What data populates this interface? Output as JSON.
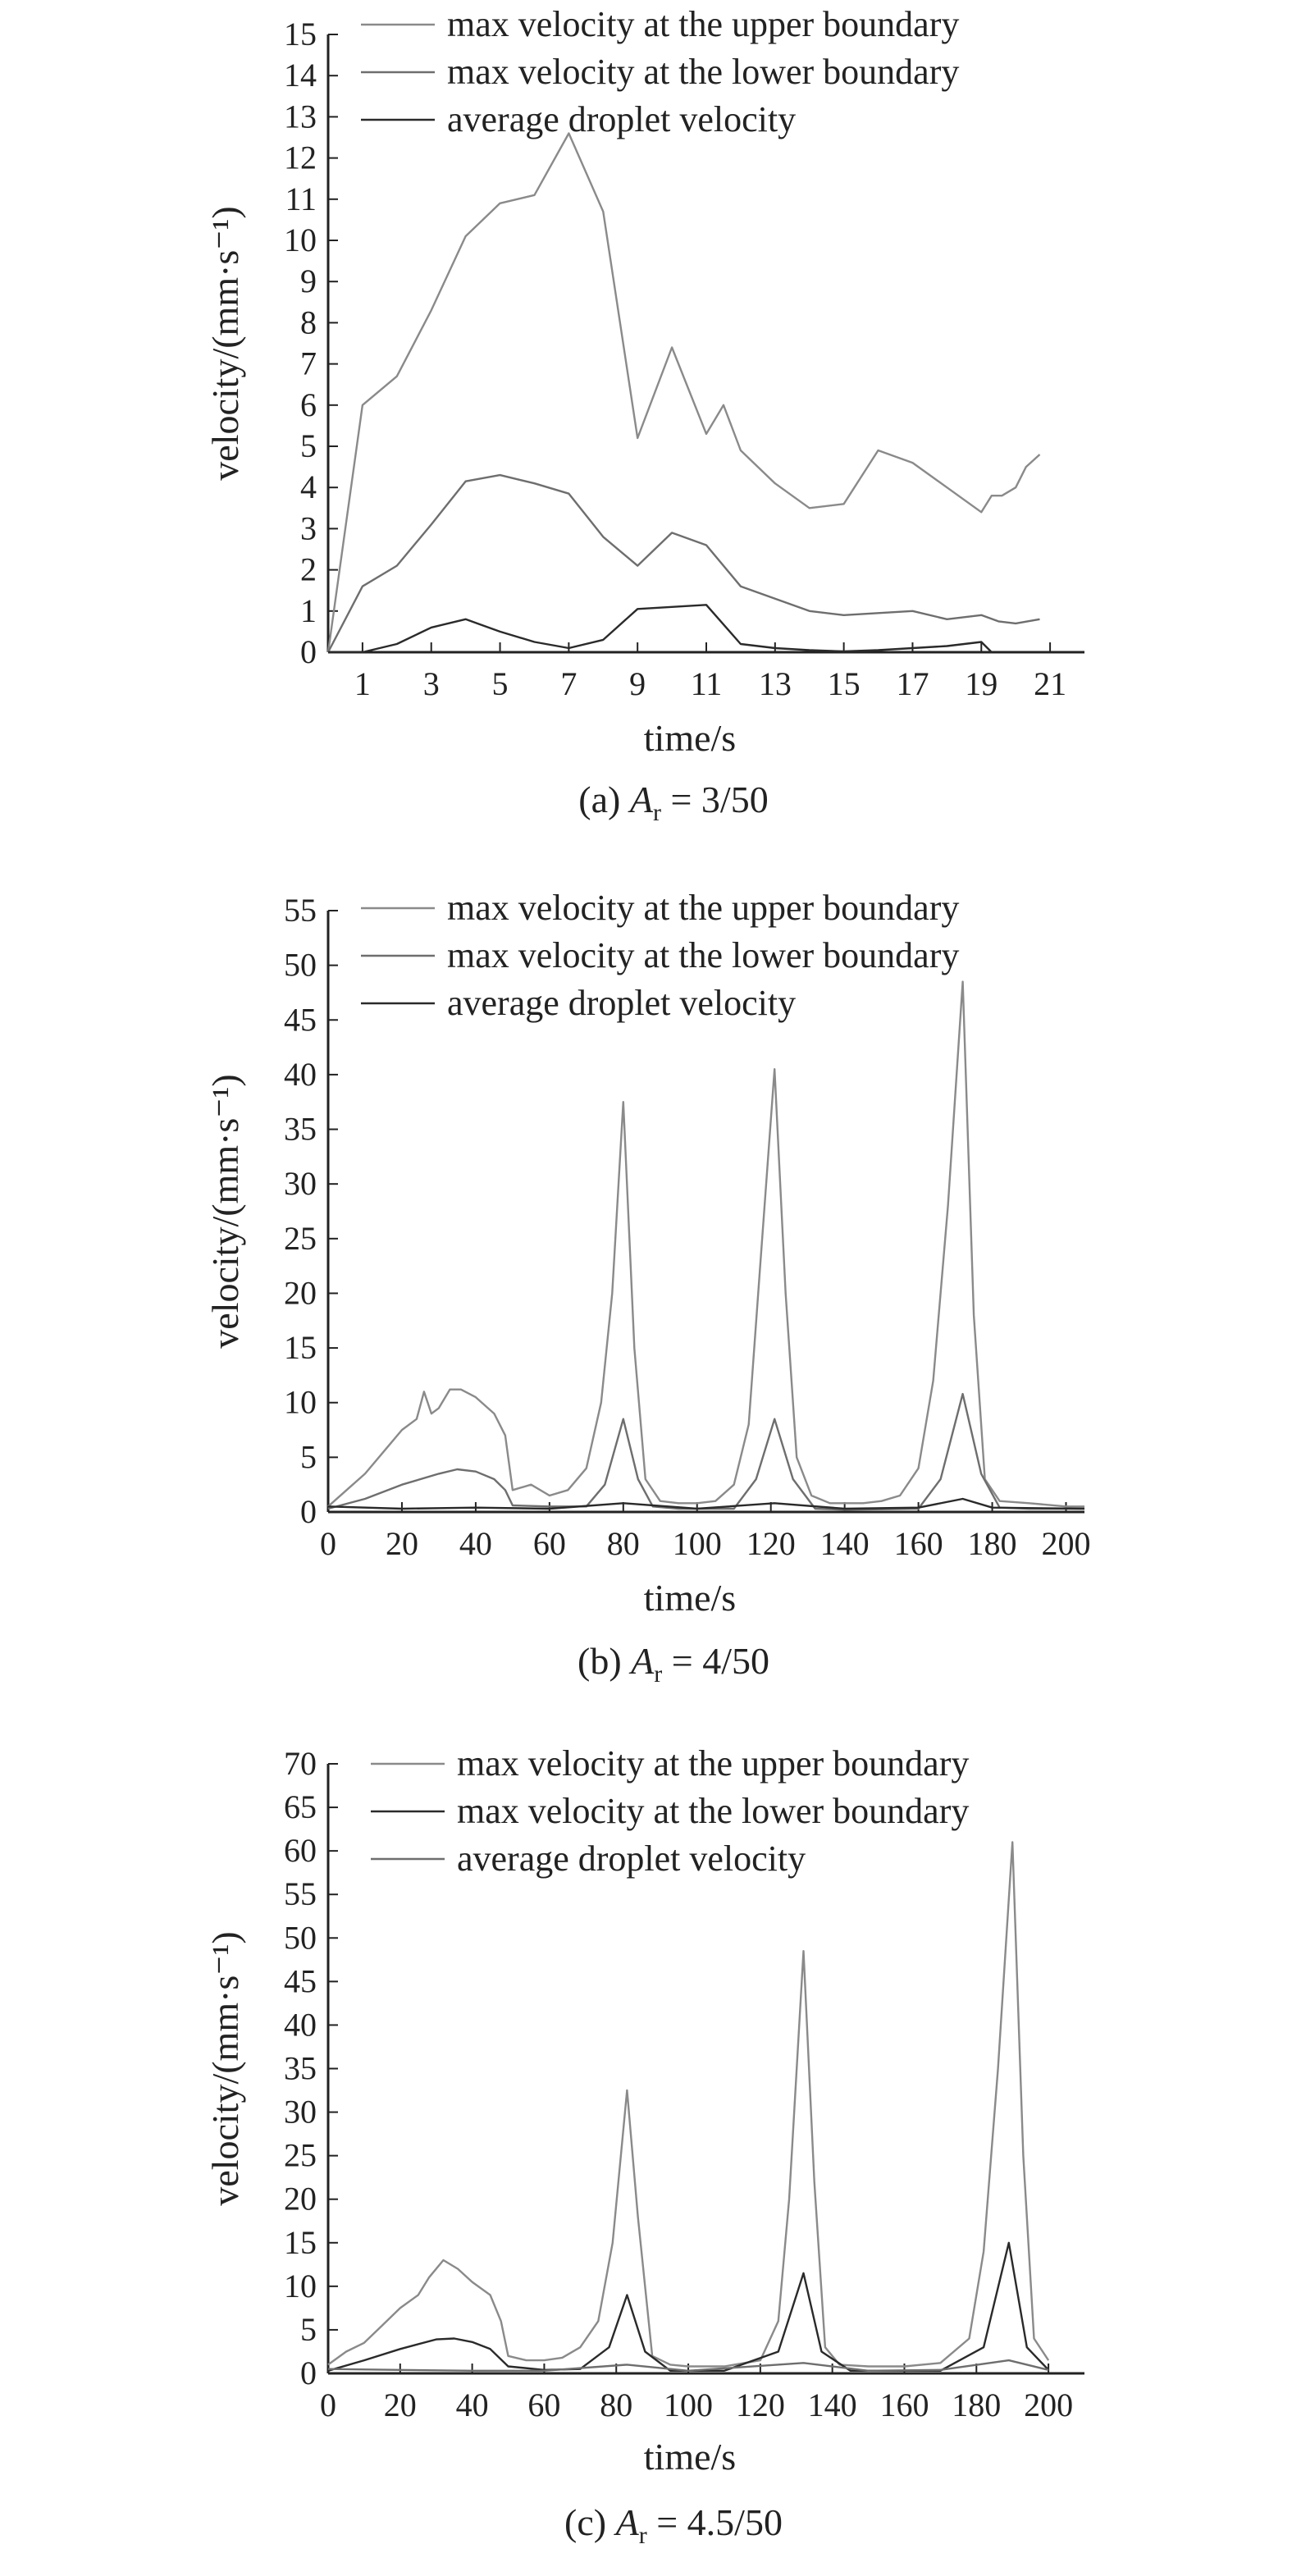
{
  "chart_data": [
    {
      "type": "line",
      "caption": "(a) A_r = 3/50",
      "caption_parts": {
        "prefix": "(a) ",
        "symbol": "A",
        "subscript": "r",
        "suffix": " = 3/50"
      },
      "xlabel": "time/s",
      "ylabel": "velocity/(mm·s⁻¹)",
      "xlim": [
        0,
        22
      ],
      "ylim": [
        0,
        15
      ],
      "xticks": [
        1,
        3,
        5,
        7,
        9,
        11,
        13,
        15,
        17,
        19,
        21
      ],
      "yticks": [
        0,
        1,
        2,
        3,
        4,
        5,
        6,
        7,
        8,
        9,
        10,
        11,
        12,
        13,
        14,
        15
      ],
      "legend_position": "top",
      "grid": false,
      "series": [
        {
          "name": "max velocity at the upper boundary",
          "color": "#8a8a8a",
          "x": [
            0,
            1,
            2,
            3,
            4,
            5,
            6,
            7,
            8,
            9,
            10,
            11,
            11.5,
            12,
            13,
            14,
            15,
            16,
            17,
            18,
            19,
            19.3,
            19.6,
            20,
            20.3,
            20.7
          ],
          "y": [
            0,
            6,
            6.7,
            8.3,
            10.1,
            10.9,
            11.1,
            12.6,
            10.7,
            5.2,
            7.4,
            5.3,
            6.0,
            4.9,
            4.1,
            3.5,
            3.6,
            4.9,
            4.6,
            4.0,
            3.4,
            3.8,
            3.8,
            4.0,
            4.5,
            4.8
          ]
        },
        {
          "name": "max velocity at the lower boundary",
          "color": "#6e6e6e",
          "x": [
            0,
            1,
            2,
            3,
            4,
            5,
            6,
            7,
            8,
            9,
            10,
            11,
            12,
            13,
            14,
            15,
            16,
            17,
            18,
            19,
            19.5,
            20,
            20.7
          ],
          "y": [
            0,
            1.6,
            2.1,
            3.1,
            4.15,
            4.3,
            4.1,
            3.85,
            2.8,
            2.1,
            2.9,
            2.6,
            1.6,
            1.3,
            1.0,
            0.9,
            0.95,
            1.0,
            0.8,
            0.9,
            0.75,
            0.7,
            0.8
          ]
        },
        {
          "name": "average droplet velocity",
          "color": "#2a2a2a",
          "x": [
            0,
            1,
            2,
            3,
            4,
            5,
            6,
            7,
            8,
            9,
            10,
            11,
            12,
            13,
            14,
            15,
            16,
            17,
            18,
            19,
            19.3
          ],
          "y": [
            0,
            0,
            0.2,
            0.6,
            0.8,
            0.5,
            0.25,
            0.1,
            0.3,
            1.05,
            1.1,
            1.15,
            0.2,
            0.1,
            0.05,
            0.02,
            0.05,
            0.1,
            0.15,
            0.25,
            0.0
          ]
        }
      ]
    },
    {
      "type": "line",
      "caption": "(b) A_r = 4/50",
      "caption_parts": {
        "prefix": "(b) ",
        "symbol": "A",
        "subscript": "r",
        "suffix": " = 4/50"
      },
      "xlabel": "time/s",
      "ylabel": "velocity/(mm·s⁻¹)",
      "xlim": [
        0,
        205
      ],
      "ylim": [
        0,
        55
      ],
      "xticks": [
        0,
        20,
        40,
        60,
        80,
        100,
        120,
        140,
        160,
        180,
        200
      ],
      "yticks": [
        0,
        5,
        10,
        15,
        20,
        25,
        30,
        35,
        40,
        45,
        50,
        55
      ],
      "legend_position": "top",
      "grid": false,
      "series": [
        {
          "name": "max velocity at the upper boundary",
          "color": "#8a8a8a",
          "x": [
            0,
            5,
            10,
            15,
            20,
            24,
            26,
            28,
            30,
            33,
            36,
            40,
            45,
            48,
            50,
            55,
            60,
            65,
            70,
            74,
            77,
            80,
            83,
            86,
            90,
            95,
            100,
            105,
            110,
            114,
            117,
            121,
            124,
            127,
            131,
            136,
            140,
            145,
            150,
            155,
            160,
            164,
            168,
            172,
            175,
            178,
            182,
            190,
            200,
            205
          ],
          "y": [
            0.5,
            2,
            3.5,
            5.5,
            7.5,
            8.5,
            11,
            9,
            9.5,
            11.2,
            11.2,
            10.5,
            9,
            7,
            2,
            2.5,
            1.5,
            2,
            4,
            10,
            20,
            37.5,
            15,
            3,
            1,
            0.8,
            0.8,
            1,
            2.5,
            8,
            22,
            40.5,
            20,
            5,
            1.5,
            0.8,
            0.8,
            0.8,
            1,
            1.5,
            4,
            12,
            28,
            48.5,
            18,
            3,
            1,
            0.8,
            0.5,
            0.5
          ]
        },
        {
          "name": "max velocity at the lower boundary",
          "color": "#6e6e6e",
          "x": [
            0,
            10,
            20,
            30,
            35,
            40,
            45,
            48,
            50,
            60,
            70,
            75,
            80,
            84,
            88,
            95,
            110,
            116,
            121,
            126,
            132,
            140,
            160,
            166,
            172,
            177,
            182,
            190,
            205
          ],
          "y": [
            0.3,
            1.2,
            2.5,
            3.5,
            3.9,
            3.7,
            3.0,
            2.0,
            0.6,
            0.5,
            0.5,
            2.5,
            8.5,
            3.0,
            0.5,
            0.3,
            0.3,
            3.0,
            8.5,
            3.0,
            0.3,
            0.2,
            0.3,
            3.0,
            10.8,
            3.5,
            0.4,
            0.3,
            0.3
          ]
        },
        {
          "name": "average droplet velocity",
          "color": "#2a2a2a",
          "x": [
            0,
            20,
            40,
            60,
            80,
            100,
            121,
            140,
            160,
            172,
            180,
            205
          ],
          "y": [
            0.5,
            0.3,
            0.4,
            0.3,
            0.8,
            0.3,
            0.8,
            0.3,
            0.4,
            1.2,
            0.4,
            0.3
          ]
        }
      ]
    },
    {
      "type": "line",
      "caption": "(c) A_r = 4.5/50",
      "caption_parts": {
        "prefix": "(c) ",
        "symbol": "A",
        "subscript": "r",
        "suffix": " = 4.5/50"
      },
      "xlabel": "time/s",
      "ylabel": "velocity/(mm·s⁻¹)",
      "xlim": [
        0,
        210
      ],
      "ylim": [
        0,
        70
      ],
      "xticks": [
        0,
        20,
        40,
        60,
        80,
        100,
        120,
        140,
        160,
        180,
        200
      ],
      "yticks": [
        0,
        5,
        10,
        15,
        20,
        25,
        30,
        35,
        40,
        45,
        50,
        55,
        60,
        65,
        70
      ],
      "legend_position": "top",
      "grid": false,
      "series": [
        {
          "name": "max velocity at the upper boundary",
          "color": "#8a8a8a",
          "x": [
            0,
            5,
            10,
            15,
            20,
            25,
            28,
            32,
            36,
            40,
            45,
            48,
            50,
            55,
            60,
            65,
            70,
            75,
            79,
            83,
            86,
            90,
            95,
            100,
            110,
            120,
            125,
            128,
            132,
            135,
            138,
            142,
            150,
            160,
            170,
            178,
            182,
            186,
            190,
            193,
            196,
            200
          ],
          "y": [
            1,
            2.5,
            3.5,
            5.5,
            7.5,
            9,
            11,
            13,
            12,
            10.5,
            9,
            6,
            2,
            1.5,
            1.5,
            1.8,
            3,
            6,
            15,
            32.5,
            18,
            2,
            1,
            0.8,
            0.8,
            1.5,
            6,
            20,
            48.5,
            22,
            3,
            1,
            0.8,
            0.8,
            1.2,
            4,
            14,
            35,
            61,
            25,
            4,
            1.5
          ]
        },
        {
          "name": "max velocity at the lower boundary",
          "color": "#2a2a2a",
          "x": [
            0,
            10,
            20,
            30,
            35,
            40,
            45,
            50,
            60,
            70,
            78,
            83,
            88,
            95,
            110,
            125,
            132,
            137,
            145,
            170,
            182,
            189,
            194,
            200
          ],
          "y": [
            0.3,
            1.5,
            2.8,
            3.9,
            4.0,
            3.6,
            2.8,
            0.8,
            0.4,
            0.5,
            3.0,
            9.0,
            2.5,
            0.3,
            0.3,
            2.5,
            11.5,
            2.5,
            0.3,
            0.3,
            3.0,
            15.0,
            3.0,
            0.4
          ]
        },
        {
          "name": "average droplet velocity",
          "color": "#6e6e6e",
          "x": [
            0,
            20,
            40,
            60,
            83,
            100,
            132,
            150,
            170,
            189,
            200
          ],
          "y": [
            0.5,
            0.4,
            0.3,
            0.3,
            1.0,
            0.3,
            1.2,
            0.3,
            0.4,
            1.5,
            0.4
          ]
        }
      ]
    }
  ]
}
